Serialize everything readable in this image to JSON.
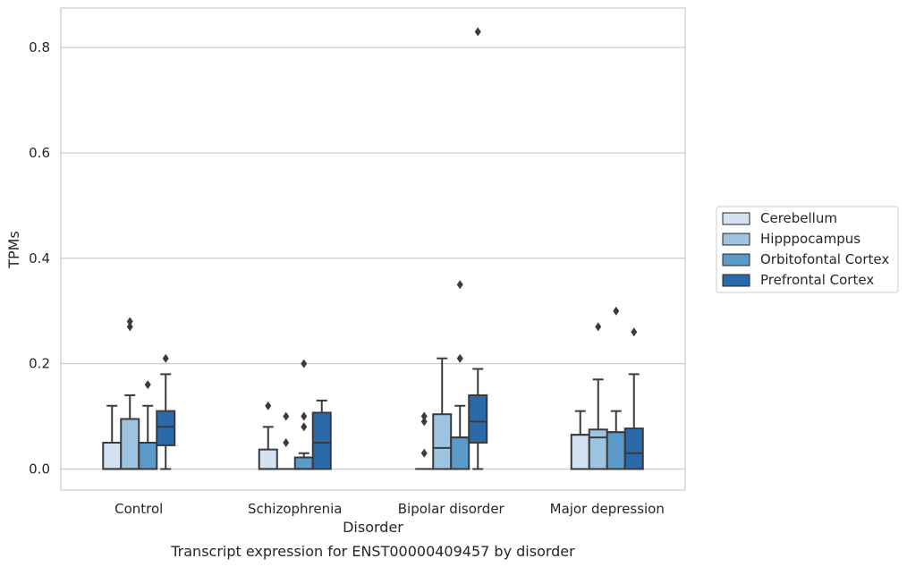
{
  "chart_data": {
    "type": "boxplot",
    "title": "",
    "caption": "Transcript expression for ENST00000409457 by disorder",
    "xlabel": "Disorder",
    "ylabel": "TPMs",
    "ylim": [
      -0.04,
      0.875
    ],
    "yticks": [
      0.0,
      0.2,
      0.4,
      0.6,
      0.8
    ],
    "ytick_labels": [
      "0.0",
      "0.2",
      "0.4",
      "0.6",
      "0.8"
    ],
    "grid": "horizontal",
    "legend_position": "right",
    "categories": [
      "Control",
      "Schizophrenia",
      "Bipolar disorder",
      "Major depression"
    ],
    "series": [
      {
        "name": "Cerebellum",
        "color": "#d4e3f2",
        "boxes": [
          {
            "whislo": 0.0,
            "q1": 0.0,
            "med": 0.0,
            "q3": 0.05,
            "whishi": 0.12,
            "fliers": []
          },
          {
            "whislo": 0.0,
            "q1": 0.0,
            "med": 0.0,
            "q3": 0.037,
            "whishi": 0.08,
            "fliers": [
              0.12
            ]
          },
          {
            "whislo": 0.0,
            "q1": 0.0,
            "med": 0.0,
            "q3": 0.0,
            "whishi": 0.0,
            "fliers": [
              0.03,
              0.09,
              0.1
            ]
          },
          {
            "whislo": 0.0,
            "q1": 0.0,
            "med": 0.065,
            "q3": 0.065,
            "whishi": 0.11,
            "fliers": []
          }
        ]
      },
      {
        "name": "Hipppocampus",
        "color": "#9dc4e0",
        "boxes": [
          {
            "whislo": 0.0,
            "q1": 0.0,
            "med": 0.0,
            "q3": 0.095,
            "whishi": 0.14,
            "fliers": [
              0.27,
              0.28
            ]
          },
          {
            "whislo": 0.0,
            "q1": 0.0,
            "med": 0.0,
            "q3": 0.0,
            "whishi": 0.0,
            "fliers": [
              0.05,
              0.1
            ]
          },
          {
            "whislo": 0.0,
            "q1": 0.0,
            "med": 0.04,
            "q3": 0.104,
            "whishi": 0.21,
            "fliers": []
          },
          {
            "whislo": 0.0,
            "q1": 0.0,
            "med": 0.06,
            "q3": 0.075,
            "whishi": 0.17,
            "fliers": [
              0.27
            ]
          }
        ]
      },
      {
        "name": "Orbitofontal Cortex",
        "color": "#5b9ac9",
        "boxes": [
          {
            "whislo": 0.0,
            "q1": 0.0,
            "med": 0.05,
            "q3": 0.05,
            "whishi": 0.12,
            "fliers": [
              0.16
            ]
          },
          {
            "whislo": 0.0,
            "q1": 0.0,
            "med": 0.0,
            "q3": 0.022,
            "whishi": 0.03,
            "fliers": [
              0.08,
              0.1,
              0.2
            ]
          },
          {
            "whislo": 0.0,
            "q1": 0.0,
            "med": 0.06,
            "q3": 0.06,
            "whishi": 0.12,
            "fliers": [
              0.21,
              0.35
            ]
          },
          {
            "whislo": 0.0,
            "q1": 0.0,
            "med": 0.07,
            "q3": 0.07,
            "whishi": 0.11,
            "fliers": [
              0.3
            ]
          }
        ]
      },
      {
        "name": "Prefrontal Cortex",
        "color": "#2b6aa9",
        "boxes": [
          {
            "whislo": 0.0,
            "q1": 0.045,
            "med": 0.08,
            "q3": 0.11,
            "whishi": 0.18,
            "fliers": [
              0.21
            ]
          },
          {
            "whislo": 0.0,
            "q1": 0.0,
            "med": 0.05,
            "q3": 0.107,
            "whishi": 0.13,
            "fliers": []
          },
          {
            "whislo": 0.0,
            "q1": 0.05,
            "med": 0.09,
            "q3": 0.14,
            "whishi": 0.19,
            "fliers": [
              0.83
            ]
          },
          {
            "whislo": 0.0,
            "q1": 0.0,
            "med": 0.03,
            "q3": 0.077,
            "whishi": 0.18,
            "fliers": [
              0.26
            ]
          }
        ]
      }
    ]
  }
}
